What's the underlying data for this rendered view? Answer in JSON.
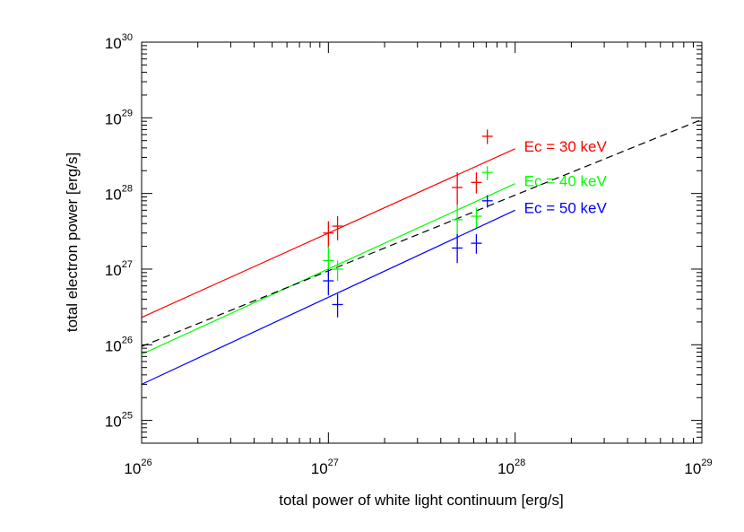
{
  "chart_data": {
    "type": "scatter",
    "xlabel": "total power of white light continuum [erg/s]",
    "ylabel": "total electron power [erg/s]",
    "x_scale": "log",
    "y_scale": "log",
    "xlim": [
      1e+26,
      1e+29
    ],
    "ylim": [
      5e+24,
      1e+30
    ],
    "x_ticks": [
      {
        "base": "10",
        "exp": "26",
        "value": 1e+26
      },
      {
        "base": "10",
        "exp": "27",
        "value": 1e+27
      },
      {
        "base": "10",
        "exp": "28",
        "value": 1e+28
      },
      {
        "base": "10",
        "exp": "29",
        "value": 1e+29
      }
    ],
    "y_ticks": [
      {
        "base": "10",
        "exp": "25",
        "value": 1e+25
      },
      {
        "base": "10",
        "exp": "26",
        "value": 1e+26
      },
      {
        "base": "10",
        "exp": "27",
        "value": 1e+27
      },
      {
        "base": "10",
        "exp": "28",
        "value": 1e+28
      },
      {
        "base": "10",
        "exp": "29",
        "value": 1e+29
      },
      {
        "base": "10",
        "exp": "30",
        "value": 1e+30
      }
    ],
    "grid": false,
    "series": [
      {
        "name": "Ec = 30 keV",
        "color": "#ff0000",
        "fit_line": {
          "x": [
            1e+26,
            1e+28
          ],
          "y": [
            2.3e+26,
            3.9e+28
          ]
        },
        "points": [
          {
            "x": 1e+27,
            "y": 3e+27,
            "ylo": 1.9e+27,
            "yhi": 4.3e+27
          },
          {
            "x": 1.12e+27,
            "y": 3.7e+27,
            "ylo": 2.4e+27,
            "yhi": 5e+27
          },
          {
            "x": 4.9e+27,
            "y": 1.2e+28,
            "ylo": 7e+27,
            "yhi": 1.9e+28
          },
          {
            "x": 6.2e+27,
            "y": 1.4e+28,
            "ylo": 1e+28,
            "yhi": 1.9e+28
          },
          {
            "x": 7.1e+27,
            "y": 5.7e+28,
            "ylo": 4.5e+28,
            "yhi": 7e+28
          }
        ]
      },
      {
        "name": "Ec = 40 keV",
        "color": "#00ff00",
        "fit_line": {
          "x": [
            1e+26,
            1e+28
          ],
          "y": [
            7.5e+25,
            1.35e+28
          ]
        },
        "points": [
          {
            "x": 1e+27,
            "y": 1.3e+27,
            "ylo": 8e+26,
            "yhi": 2e+27
          },
          {
            "x": 1.12e+27,
            "y": 1e+27,
            "ylo": 7e+26,
            "yhi": 1.3e+27
          },
          {
            "x": 4.9e+27,
            "y": 4.5e+27,
            "ylo": 2.5e+27,
            "yhi": 7e+27
          },
          {
            "x": 6.2e+27,
            "y": 5e+27,
            "ylo": 3.5e+27,
            "yhi": 6.5e+27
          },
          {
            "x": 7.1e+27,
            "y": 1.9e+28,
            "ylo": 1.5e+28,
            "yhi": 2.3e+28
          }
        ]
      },
      {
        "name": "Ec = 50 keV",
        "color": "#0000ff",
        "fit_line": {
          "x": [
            1e+26,
            1e+28
          ],
          "y": [
            3e+25,
            6e+27
          ]
        },
        "points": [
          {
            "x": 1e+27,
            "y": 7e+26,
            "ylo": 4.5e+26,
            "yhi": 1e+27
          },
          {
            "x": 1.12e+27,
            "y": 3.4e+26,
            "ylo": 2.3e+26,
            "yhi": 4.7e+26
          },
          {
            "x": 4.9e+27,
            "y": 1.9e+27,
            "ylo": 1.2e+27,
            "yhi": 2.9e+27
          },
          {
            "x": 6.2e+27,
            "y": 2.2e+27,
            "ylo": 1.6e+27,
            "yhi": 2.9e+27
          },
          {
            "x": 7.1e+27,
            "y": 8e+27,
            "ylo": 6.5e+27,
            "yhi": 9.5e+27
          }
        ]
      }
    ],
    "reference_line": {
      "color": "#000000",
      "style": "dashed",
      "x": [
        1e+26,
        1e+29
      ],
      "y": [
        9.5e+25,
        9.5e+28
      ]
    }
  }
}
